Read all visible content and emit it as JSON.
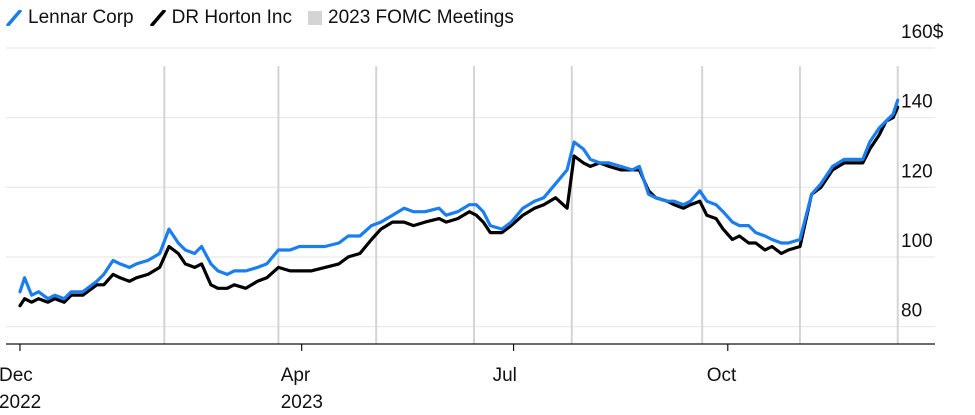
{
  "legend": {
    "items": [
      {
        "label": "Lennar Corp",
        "color": "#1a7ef0",
        "icon": "slash-line-icon"
      },
      {
        "label": "DR Horton Inc",
        "color": "#000000",
        "icon": "slash-line-icon"
      },
      {
        "label": "2023 FOMC Meetings",
        "color": "#d4d4d4",
        "icon": "square-icon"
      }
    ]
  },
  "chart_data": {
    "type": "line",
    "title": "",
    "xlabel": "",
    "ylabel": "",
    "unit": "$",
    "ylim": [
      75,
      160
    ],
    "yticks": [
      80,
      100,
      120,
      140,
      160
    ],
    "ytick_labels": [
      "80",
      "100",
      "120",
      "140",
      "160$"
    ],
    "xlim": [
      "2022-12-01",
      "2023-12-14"
    ],
    "xticks": [
      {
        "date": "2022-12-01",
        "label": [
          "Dec",
          "2022"
        ]
      },
      {
        "date": "2023-04-01",
        "label": [
          "Apr",
          "2023"
        ]
      },
      {
        "date": "2023-07-01",
        "label": [
          "Jul"
        ]
      },
      {
        "date": "2023-10-01",
        "label": [
          "Oct"
        ]
      }
    ],
    "fomc_meetings": [
      "2023-02-01",
      "2023-03-22",
      "2023-05-03",
      "2023-06-14",
      "2023-07-26",
      "2023-09-20",
      "2023-11-01",
      "2023-12-13"
    ],
    "grid": true,
    "legend_position": "top-left",
    "series": [
      {
        "name": "Lennar Corp",
        "color": "#1a7ef0",
        "points": [
          [
            "2022-12-01",
            90
          ],
          [
            "2022-12-03",
            94
          ],
          [
            "2022-12-06",
            89
          ],
          [
            "2022-12-09",
            90
          ],
          [
            "2022-12-13",
            88
          ],
          [
            "2022-12-16",
            89
          ],
          [
            "2022-12-20",
            88
          ],
          [
            "2022-12-23",
            90
          ],
          [
            "2022-12-28",
            90
          ],
          [
            "2023-01-03",
            93
          ],
          [
            "2023-01-06",
            95
          ],
          [
            "2023-01-10",
            99
          ],
          [
            "2023-01-13",
            98
          ],
          [
            "2023-01-17",
            97
          ],
          [
            "2023-01-20",
            98
          ],
          [
            "2023-01-25",
            99
          ],
          [
            "2023-01-30",
            101
          ],
          [
            "2023-02-03",
            108
          ],
          [
            "2023-02-07",
            104
          ],
          [
            "2023-02-10",
            102
          ],
          [
            "2023-02-14",
            101
          ],
          [
            "2023-02-17",
            103
          ],
          [
            "2023-02-21",
            98
          ],
          [
            "2023-02-24",
            96
          ],
          [
            "2023-02-28",
            95
          ],
          [
            "2023-03-03",
            96
          ],
          [
            "2023-03-08",
            96
          ],
          [
            "2023-03-13",
            97
          ],
          [
            "2023-03-17",
            98
          ],
          [
            "2023-03-22",
            102
          ],
          [
            "2023-03-27",
            102
          ],
          [
            "2023-03-31",
            103
          ],
          [
            "2023-04-05",
            103
          ],
          [
            "2023-04-11",
            103
          ],
          [
            "2023-04-17",
            104
          ],
          [
            "2023-04-21",
            106
          ],
          [
            "2023-04-26",
            106
          ],
          [
            "2023-05-01",
            109
          ],
          [
            "2023-05-05",
            110
          ],
          [
            "2023-05-10",
            112
          ],
          [
            "2023-05-15",
            114
          ],
          [
            "2023-05-19",
            113
          ],
          [
            "2023-05-24",
            113
          ],
          [
            "2023-05-30",
            114
          ],
          [
            "2023-06-02",
            112
          ],
          [
            "2023-06-07",
            113
          ],
          [
            "2023-06-12",
            115
          ],
          [
            "2023-06-15",
            115
          ],
          [
            "2023-06-18",
            113
          ],
          [
            "2023-06-21",
            109
          ],
          [
            "2023-06-26",
            108
          ],
          [
            "2023-06-30",
            110
          ],
          [
            "2023-07-05",
            114
          ],
          [
            "2023-07-10",
            116
          ],
          [
            "2023-07-14",
            117
          ],
          [
            "2023-07-19",
            121
          ],
          [
            "2023-07-24",
            125
          ],
          [
            "2023-07-27",
            133
          ],
          [
            "2023-07-31",
            131
          ],
          [
            "2023-08-03",
            128
          ],
          [
            "2023-08-07",
            127
          ],
          [
            "2023-08-11",
            127
          ],
          [
            "2023-08-16",
            126
          ],
          [
            "2023-08-21",
            125
          ],
          [
            "2023-08-24",
            126
          ],
          [
            "2023-08-28",
            118
          ],
          [
            "2023-08-31",
            117
          ],
          [
            "2023-09-05",
            116
          ],
          [
            "2023-09-08",
            116
          ],
          [
            "2023-09-12",
            115
          ],
          [
            "2023-09-15",
            116
          ],
          [
            "2023-09-19",
            119
          ],
          [
            "2023-09-22",
            116
          ],
          [
            "2023-09-26",
            115
          ],
          [
            "2023-09-29",
            113
          ],
          [
            "2023-10-03",
            110
          ],
          [
            "2023-10-06",
            109
          ],
          [
            "2023-10-10",
            109
          ],
          [
            "2023-10-13",
            107
          ],
          [
            "2023-10-17",
            106
          ],
          [
            "2023-10-20",
            105
          ],
          [
            "2023-10-24",
            104
          ],
          [
            "2023-10-27",
            104
          ],
          [
            "2023-11-01",
            105
          ],
          [
            "2023-11-06",
            118
          ],
          [
            "2023-11-10",
            121
          ],
          [
            "2023-11-15",
            126
          ],
          [
            "2023-11-20",
            128
          ],
          [
            "2023-11-24",
            128
          ],
          [
            "2023-11-28",
            128
          ],
          [
            "2023-12-01",
            133
          ],
          [
            "2023-12-05",
            137
          ],
          [
            "2023-12-08",
            139
          ],
          [
            "2023-12-11",
            141
          ],
          [
            "2023-12-13",
            145
          ]
        ]
      },
      {
        "name": "DR Horton Inc",
        "color": "#000000",
        "points": [
          [
            "2022-12-01",
            86
          ],
          [
            "2022-12-03",
            88
          ],
          [
            "2022-12-06",
            87
          ],
          [
            "2022-12-09",
            88
          ],
          [
            "2022-12-13",
            87
          ],
          [
            "2022-12-16",
            88
          ],
          [
            "2022-12-20",
            87
          ],
          [
            "2022-12-23",
            89
          ],
          [
            "2022-12-28",
            89
          ],
          [
            "2023-01-03",
            92
          ],
          [
            "2023-01-06",
            92
          ],
          [
            "2023-01-10",
            95
          ],
          [
            "2023-01-13",
            94
          ],
          [
            "2023-01-17",
            93
          ],
          [
            "2023-01-20",
            94
          ],
          [
            "2023-01-25",
            95
          ],
          [
            "2023-01-30",
            97
          ],
          [
            "2023-02-03",
            103
          ],
          [
            "2023-02-07",
            101
          ],
          [
            "2023-02-10",
            98
          ],
          [
            "2023-02-14",
            97
          ],
          [
            "2023-02-17",
            98
          ],
          [
            "2023-02-21",
            92
          ],
          [
            "2023-02-24",
            91
          ],
          [
            "2023-02-28",
            91
          ],
          [
            "2023-03-03",
            92
          ],
          [
            "2023-03-08",
            91
          ],
          [
            "2023-03-13",
            93
          ],
          [
            "2023-03-17",
            94
          ],
          [
            "2023-03-22",
            97
          ],
          [
            "2023-03-27",
            96
          ],
          [
            "2023-03-31",
            96
          ],
          [
            "2023-04-05",
            96
          ],
          [
            "2023-04-11",
            97
          ],
          [
            "2023-04-17",
            98
          ],
          [
            "2023-04-21",
            100
          ],
          [
            "2023-04-26",
            101
          ],
          [
            "2023-05-01",
            105
          ],
          [
            "2023-05-05",
            108
          ],
          [
            "2023-05-10",
            110
          ],
          [
            "2023-05-15",
            110
          ],
          [
            "2023-05-19",
            109
          ],
          [
            "2023-05-24",
            110
          ],
          [
            "2023-05-30",
            111
          ],
          [
            "2023-06-02",
            110
          ],
          [
            "2023-06-07",
            111
          ],
          [
            "2023-06-12",
            113
          ],
          [
            "2023-06-15",
            112
          ],
          [
            "2023-06-18",
            110
          ],
          [
            "2023-06-21",
            107
          ],
          [
            "2023-06-26",
            107
          ],
          [
            "2023-06-30",
            109
          ],
          [
            "2023-07-05",
            112
          ],
          [
            "2023-07-10",
            114
          ],
          [
            "2023-07-14",
            115
          ],
          [
            "2023-07-19",
            117
          ],
          [
            "2023-07-24",
            114
          ],
          [
            "2023-07-27",
            129
          ],
          [
            "2023-07-31",
            127
          ],
          [
            "2023-08-03",
            126
          ],
          [
            "2023-08-07",
            127
          ],
          [
            "2023-08-11",
            126
          ],
          [
            "2023-08-16",
            125
          ],
          [
            "2023-08-21",
            125
          ],
          [
            "2023-08-24",
            125
          ],
          [
            "2023-08-28",
            119
          ],
          [
            "2023-08-31",
            117
          ],
          [
            "2023-09-05",
            116
          ],
          [
            "2023-09-08",
            115
          ],
          [
            "2023-09-12",
            114
          ],
          [
            "2023-09-15",
            115
          ],
          [
            "2023-09-19",
            116
          ],
          [
            "2023-09-22",
            112
          ],
          [
            "2023-09-26",
            111
          ],
          [
            "2023-09-29",
            108
          ],
          [
            "2023-10-03",
            105
          ],
          [
            "2023-10-06",
            106
          ],
          [
            "2023-10-10",
            104
          ],
          [
            "2023-10-13",
            104
          ],
          [
            "2023-10-17",
            102
          ],
          [
            "2023-10-20",
            103
          ],
          [
            "2023-10-24",
            101
          ],
          [
            "2023-10-27",
            102
          ],
          [
            "2023-11-01",
            103
          ],
          [
            "2023-11-06",
            118
          ],
          [
            "2023-11-10",
            120
          ],
          [
            "2023-11-15",
            125
          ],
          [
            "2023-11-20",
            127
          ],
          [
            "2023-11-24",
            127
          ],
          [
            "2023-11-28",
            127
          ],
          [
            "2023-12-01",
            131
          ],
          [
            "2023-12-05",
            135
          ],
          [
            "2023-12-08",
            139
          ],
          [
            "2023-12-11",
            140
          ],
          [
            "2023-12-13",
            143
          ]
        ]
      }
    ]
  }
}
